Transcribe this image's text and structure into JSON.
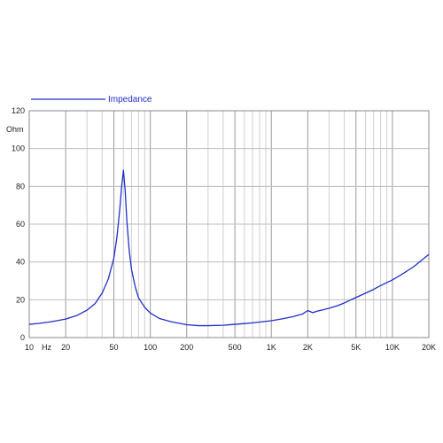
{
  "chart_data": {
    "type": "line",
    "x_scale": "log",
    "xlim": [
      10,
      20000
    ],
    "ylim": [
      0,
      120
    ],
    "grid": true,
    "ylabel": "Ohm",
    "xunit": "Hz",
    "legend_position": "top-left",
    "colors": {
      "line": "#1f2fc8",
      "grid": "#bdbdbd",
      "frame": "#8a8a8a"
    },
    "x_ticks": [
      {
        "value": 10,
        "label": "10"
      },
      {
        "value": 20,
        "label": "20"
      },
      {
        "value": 50,
        "label": "50"
      },
      {
        "value": 100,
        "label": "100"
      },
      {
        "value": 200,
        "label": "200"
      },
      {
        "value": 500,
        "label": "500"
      },
      {
        "value": 1000,
        "label": "1K"
      },
      {
        "value": 2000,
        "label": "2K"
      },
      {
        "value": 5000,
        "label": "5K"
      },
      {
        "value": 10000,
        "label": "10K"
      },
      {
        "value": 20000,
        "label": "20K"
      }
    ],
    "y_ticks": [
      0,
      20,
      40,
      60,
      80,
      100,
      120
    ],
    "series": [
      {
        "name": "Impedance",
        "x": [
          10,
          12,
          15,
          20,
          25,
          30,
          35,
          40,
          45,
          50,
          53,
          56,
          58,
          60,
          62,
          64,
          67,
          70,
          75,
          80,
          90,
          100,
          120,
          150,
          200,
          250,
          300,
          400,
          500,
          600,
          700,
          800,
          1000,
          1200,
          1500,
          1800,
          2000,
          2200,
          2400,
          2600,
          3000,
          3500,
          4000,
          5000,
          6000,
          7000,
          8000,
          10000,
          12000,
          15000,
          20000
        ],
        "y": [
          7,
          7.5,
          8.3,
          9.8,
          11.8,
          14.5,
          18,
          23.5,
          31,
          42,
          53,
          68,
          80,
          88.5,
          78,
          62,
          46,
          36,
          27,
          21,
          16,
          13,
          10,
          8.3,
          6.8,
          6.3,
          6.3,
          6.5,
          7,
          7.4,
          7.8,
          8.2,
          8.9,
          9.8,
          11,
          12.4,
          14.3,
          13.2,
          14,
          14.5,
          15.5,
          16.8,
          18.3,
          21.2,
          23.5,
          25.5,
          27.5,
          30.5,
          33.5,
          37.5,
          44
        ]
      }
    ]
  }
}
